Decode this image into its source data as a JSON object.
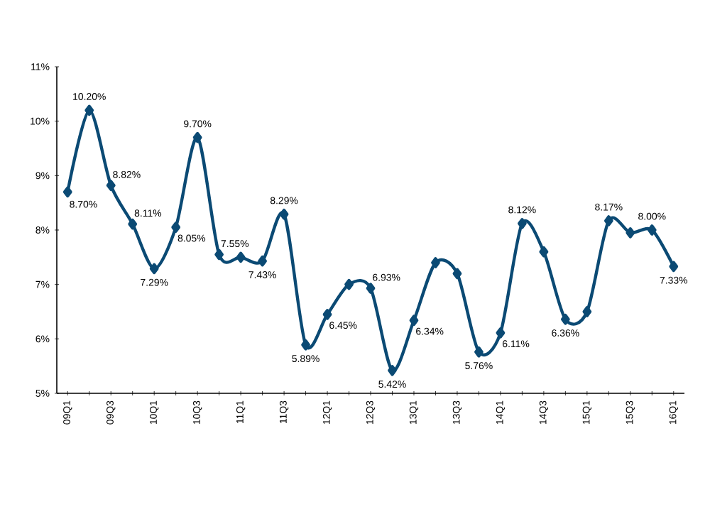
{
  "chart_data": {
    "type": "line",
    "categories": [
      "09Q1",
      null,
      "09Q3",
      null,
      "10Q1",
      null,
      "10Q3",
      null,
      "11Q1",
      null,
      "11Q3",
      null,
      "12Q1",
      null,
      "12Q3",
      null,
      "13Q1",
      null,
      "13Q3",
      null,
      "14Q1",
      null,
      "14Q3",
      null,
      "15Q1",
      null,
      "15Q3",
      null,
      "16Q1"
    ],
    "series": [
      {
        "color": "#0b4a74",
        "values": [
          8.7,
          10.2,
          8.82,
          8.11,
          7.29,
          8.05,
          9.7,
          7.55,
          7.5,
          7.43,
          8.29,
          5.89,
          6.45,
          7.0,
          6.93,
          5.42,
          6.34,
          7.4,
          7.2,
          5.76,
          6.11,
          8.12,
          7.6,
          6.36,
          6.5,
          8.17,
          7.95,
          8.0,
          7.33
        ],
        "value_labels": [
          "8.70%",
          "10.20%",
          "8.82%",
          "8.11%",
          "7.29%",
          "8.05%",
          "9.70%",
          "7.55%",
          null,
          "7.43%",
          "8.29%",
          "5.89%",
          "6.45%",
          null,
          "6.93%",
          "5.42%",
          "6.34%",
          null,
          null,
          "5.76%",
          "6.11%",
          "8.12%",
          null,
          "6.36%",
          null,
          "8.17%",
          null,
          "8.00%",
          "7.33%"
        ]
      }
    ],
    "ylim": [
      5,
      11
    ],
    "yticks": [
      {
        "value": 5,
        "label": "5%"
      },
      {
        "value": 6,
        "label": "6%"
      },
      {
        "value": 7,
        "label": "7%"
      },
      {
        "value": 8,
        "label": "8%"
      },
      {
        "value": 9,
        "label": "9%"
      },
      {
        "value": 10,
        "label": "10%"
      },
      {
        "value": 11,
        "label": "11%"
      }
    ],
    "marker": "diamond",
    "line_style": "solid",
    "grid": false
  }
}
